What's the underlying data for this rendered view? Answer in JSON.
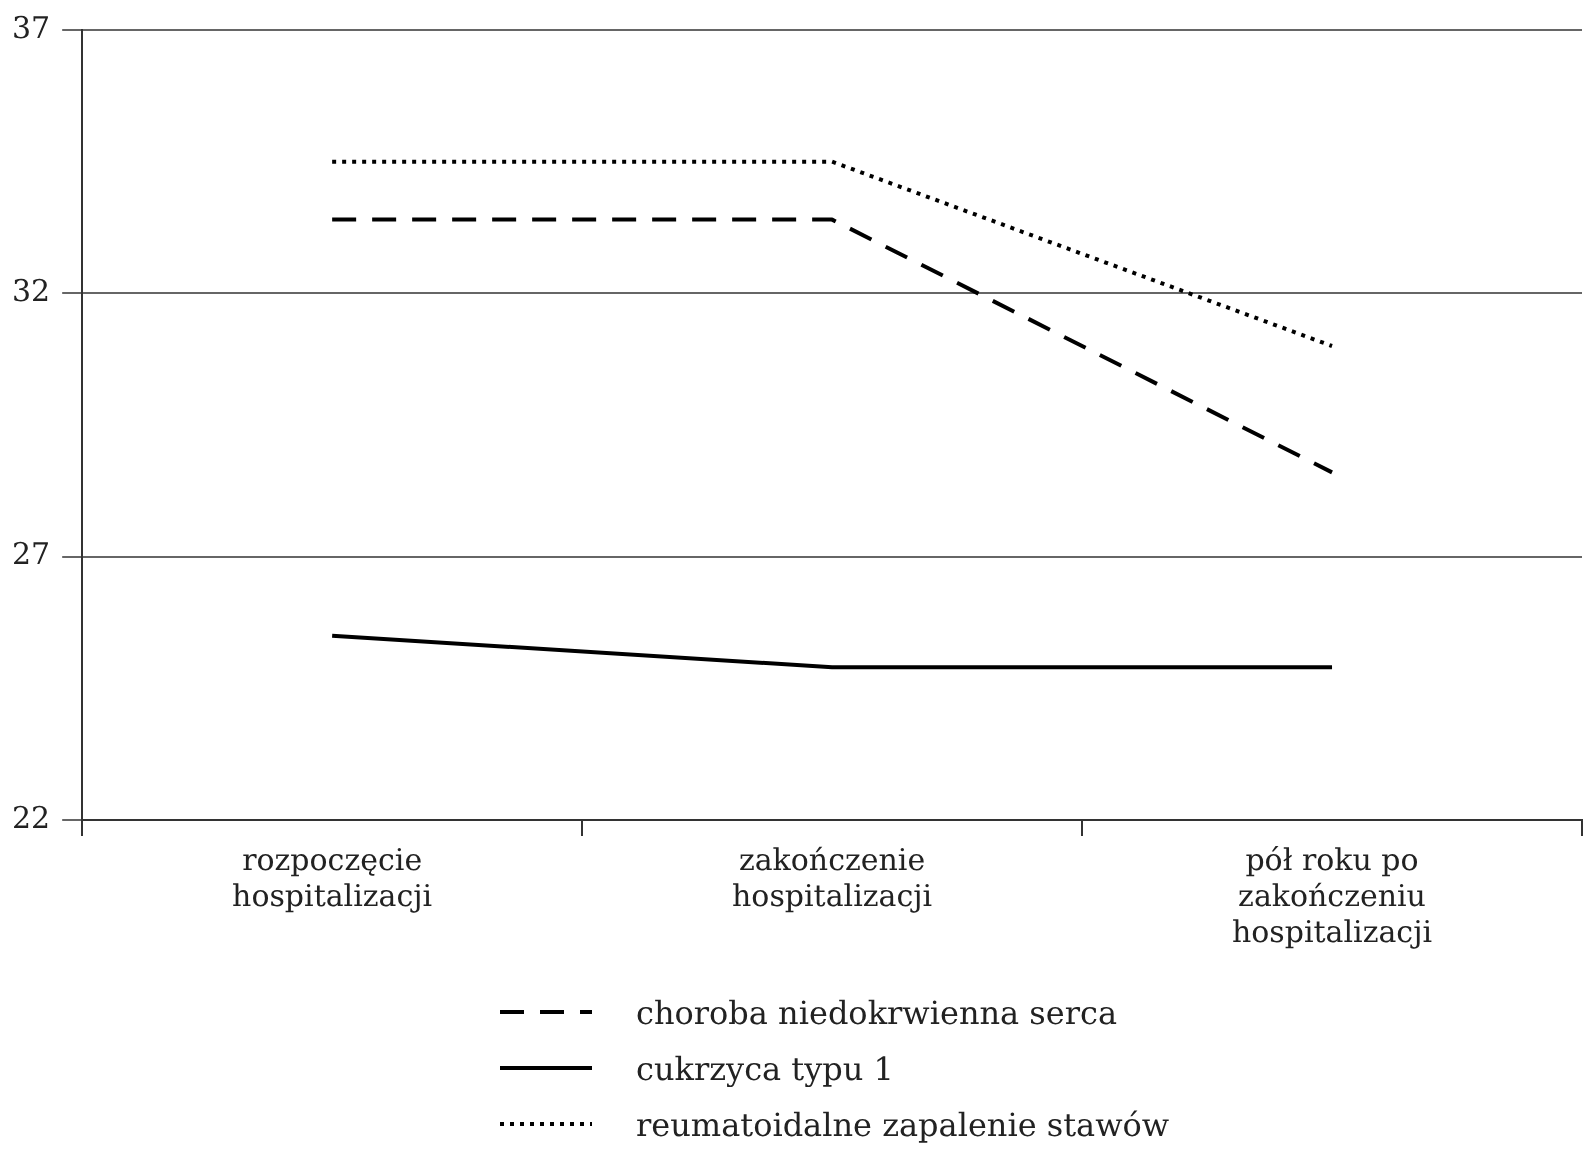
{
  "chart_data": {
    "type": "line",
    "categories": [
      "rozpoczęcie hospitalizacji",
      "zakończenie hospitalizacji",
      "pół roku po zakończeniu hospitalizacji"
    ],
    "series": [
      {
        "name": "choroba niedokrwienna serca",
        "color": "#000000",
        "line_style": "dashed",
        "values": [
          33.4,
          33.4,
          28.6
        ]
      },
      {
        "name": "cukrzyca typu 1",
        "color": "#000000",
        "line_style": "solid",
        "values": [
          25.5,
          24.9,
          24.9
        ]
      },
      {
        "name": "reumatoidalne zapalenie stawów",
        "color": "#000000",
        "line_style": "dotted",
        "values": [
          34.5,
          34.5,
          31.0
        ]
      }
    ],
    "ylim": [
      22,
      37
    ],
    "yticks": [
      22,
      27,
      32,
      37
    ],
    "grid": "y",
    "legend": "bottom",
    "marker": "none"
  }
}
